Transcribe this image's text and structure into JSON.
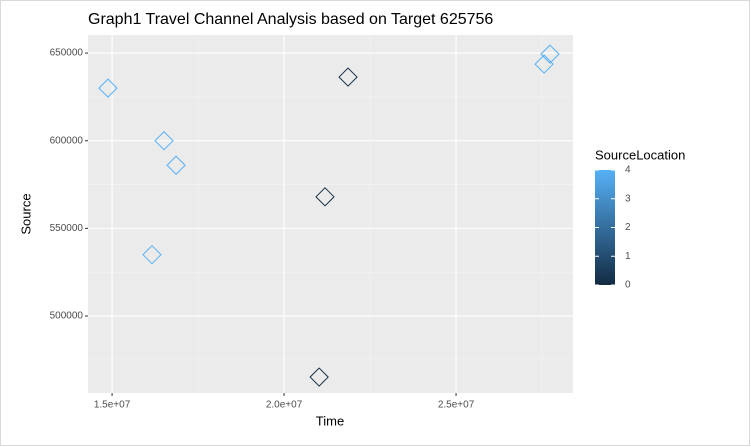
{
  "chart_data": {
    "type": "scatter",
    "title": "Graph1 Travel Channel Analysis based on Target 625756",
    "x_label": "Time",
    "y_label": "Source",
    "x": [
      14880000,
      16510000,
      16860000,
      16160000,
      21860000,
      21190000,
      21020000,
      27560000,
      27730000
    ],
    "values": [
      630000,
      600000,
      586000,
      535000,
      636300,
      568000,
      465200,
      643700,
      649400
    ],
    "color_values": [
      4,
      4,
      4,
      4,
      0,
      0,
      0,
      4,
      4
    ],
    "xlim": [
      14300000,
      28400000
    ],
    "ylim": [
      456100,
      660300
    ],
    "xticks": [
      {
        "value": 15000000,
        "label": "1.5e+07"
      },
      {
        "value": 20000000,
        "label": "2.0e+07"
      },
      {
        "value": 25000000,
        "label": "2.5e+07"
      }
    ],
    "yticks": [
      500000,
      550000,
      600000,
      650000
    ],
    "grid": true,
    "legend": {
      "title": "SourceLocation",
      "lim": [
        0,
        4
      ],
      "ticks": [
        0,
        1,
        2,
        3,
        4
      ],
      "low_color": "#132B43",
      "high_color": "#56B1F7",
      "position": "right"
    }
  }
}
